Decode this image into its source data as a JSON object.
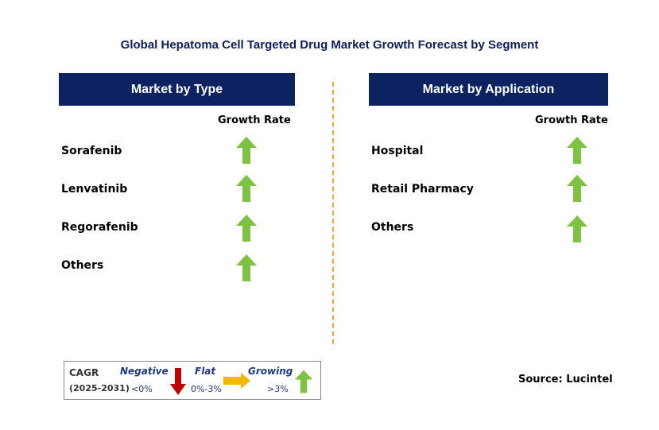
{
  "title": "Global Hepatoma Cell Targeted Drug Market Growth Forecast by Segment",
  "left_panel": {
    "header": "Market by Type",
    "growth_label": "Growth Rate",
    "items": [
      {
        "label": "Sorafenib",
        "trend": "growing"
      },
      {
        "label": "Lenvatinib",
        "trend": "growing"
      },
      {
        "label": "Regorafenib",
        "trend": "growing"
      },
      {
        "label": "Others",
        "trend": "growing"
      }
    ]
  },
  "right_panel": {
    "header": "Market by Application",
    "growth_label": "Growth Rate",
    "items": [
      {
        "label": "Hospital",
        "trend": "growing"
      },
      {
        "label": "Retail Pharmacy",
        "trend": "growing"
      },
      {
        "label": "Others",
        "trend": "growing"
      }
    ]
  },
  "legend": {
    "cagr": "CAGR",
    "years": "(2025-2031)",
    "negative": {
      "label": "Negative",
      "value": "<0%"
    },
    "flat": {
      "label": "Flat",
      "value": "0%-3%"
    },
    "growing": {
      "label": "Growing",
      "value": ">3%"
    }
  },
  "source": "Source: Lucintel",
  "colors": {
    "header_bg": "#0c2261",
    "title": "#0c1f5b",
    "growing_arrow": "#7dc242",
    "negative_arrow": "#c00000",
    "flat_arrow": "#f5b800",
    "divider": "#f5a623"
  }
}
